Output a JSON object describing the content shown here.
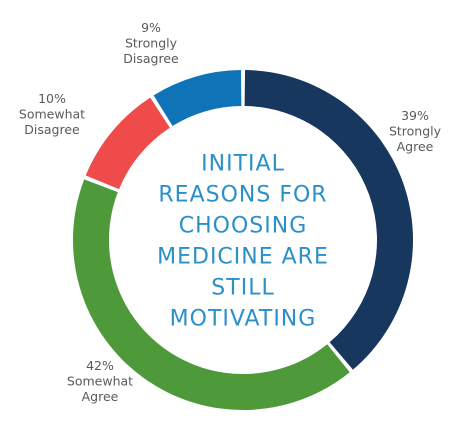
{
  "chart_data": {
    "type": "pie",
    "variant": "donut",
    "title": "INITIAL REASONS FOR CHOOSING MEDICINE ARE STILL MOTIVATING",
    "title_lines": [
      "INITIAL",
      "REASONS FOR",
      "CHOOSING",
      "MEDICINE ARE",
      "STILL",
      "MOTIVATING"
    ],
    "slices": [
      {
        "pct_label": "39%",
        "label_lines": [
          "Strongly",
          "Agree"
        ],
        "value": 39,
        "color": "#17375e"
      },
      {
        "pct_label": "42%",
        "label_lines": [
          "Somewhat",
          "Agree"
        ],
        "value": 42,
        "color": "#4e9a3a"
      },
      {
        "pct_label": "10%",
        "label_lines": [
          "Somewhat",
          "Disagree"
        ],
        "value": 10,
        "color": "#f04b4b"
      },
      {
        "pct_label": "9%",
        "label_lines": [
          "Strongly",
          "Disagree"
        ],
        "value": 9,
        "color": "#0f73b8"
      }
    ],
    "legend": "none",
    "grid": false
  }
}
